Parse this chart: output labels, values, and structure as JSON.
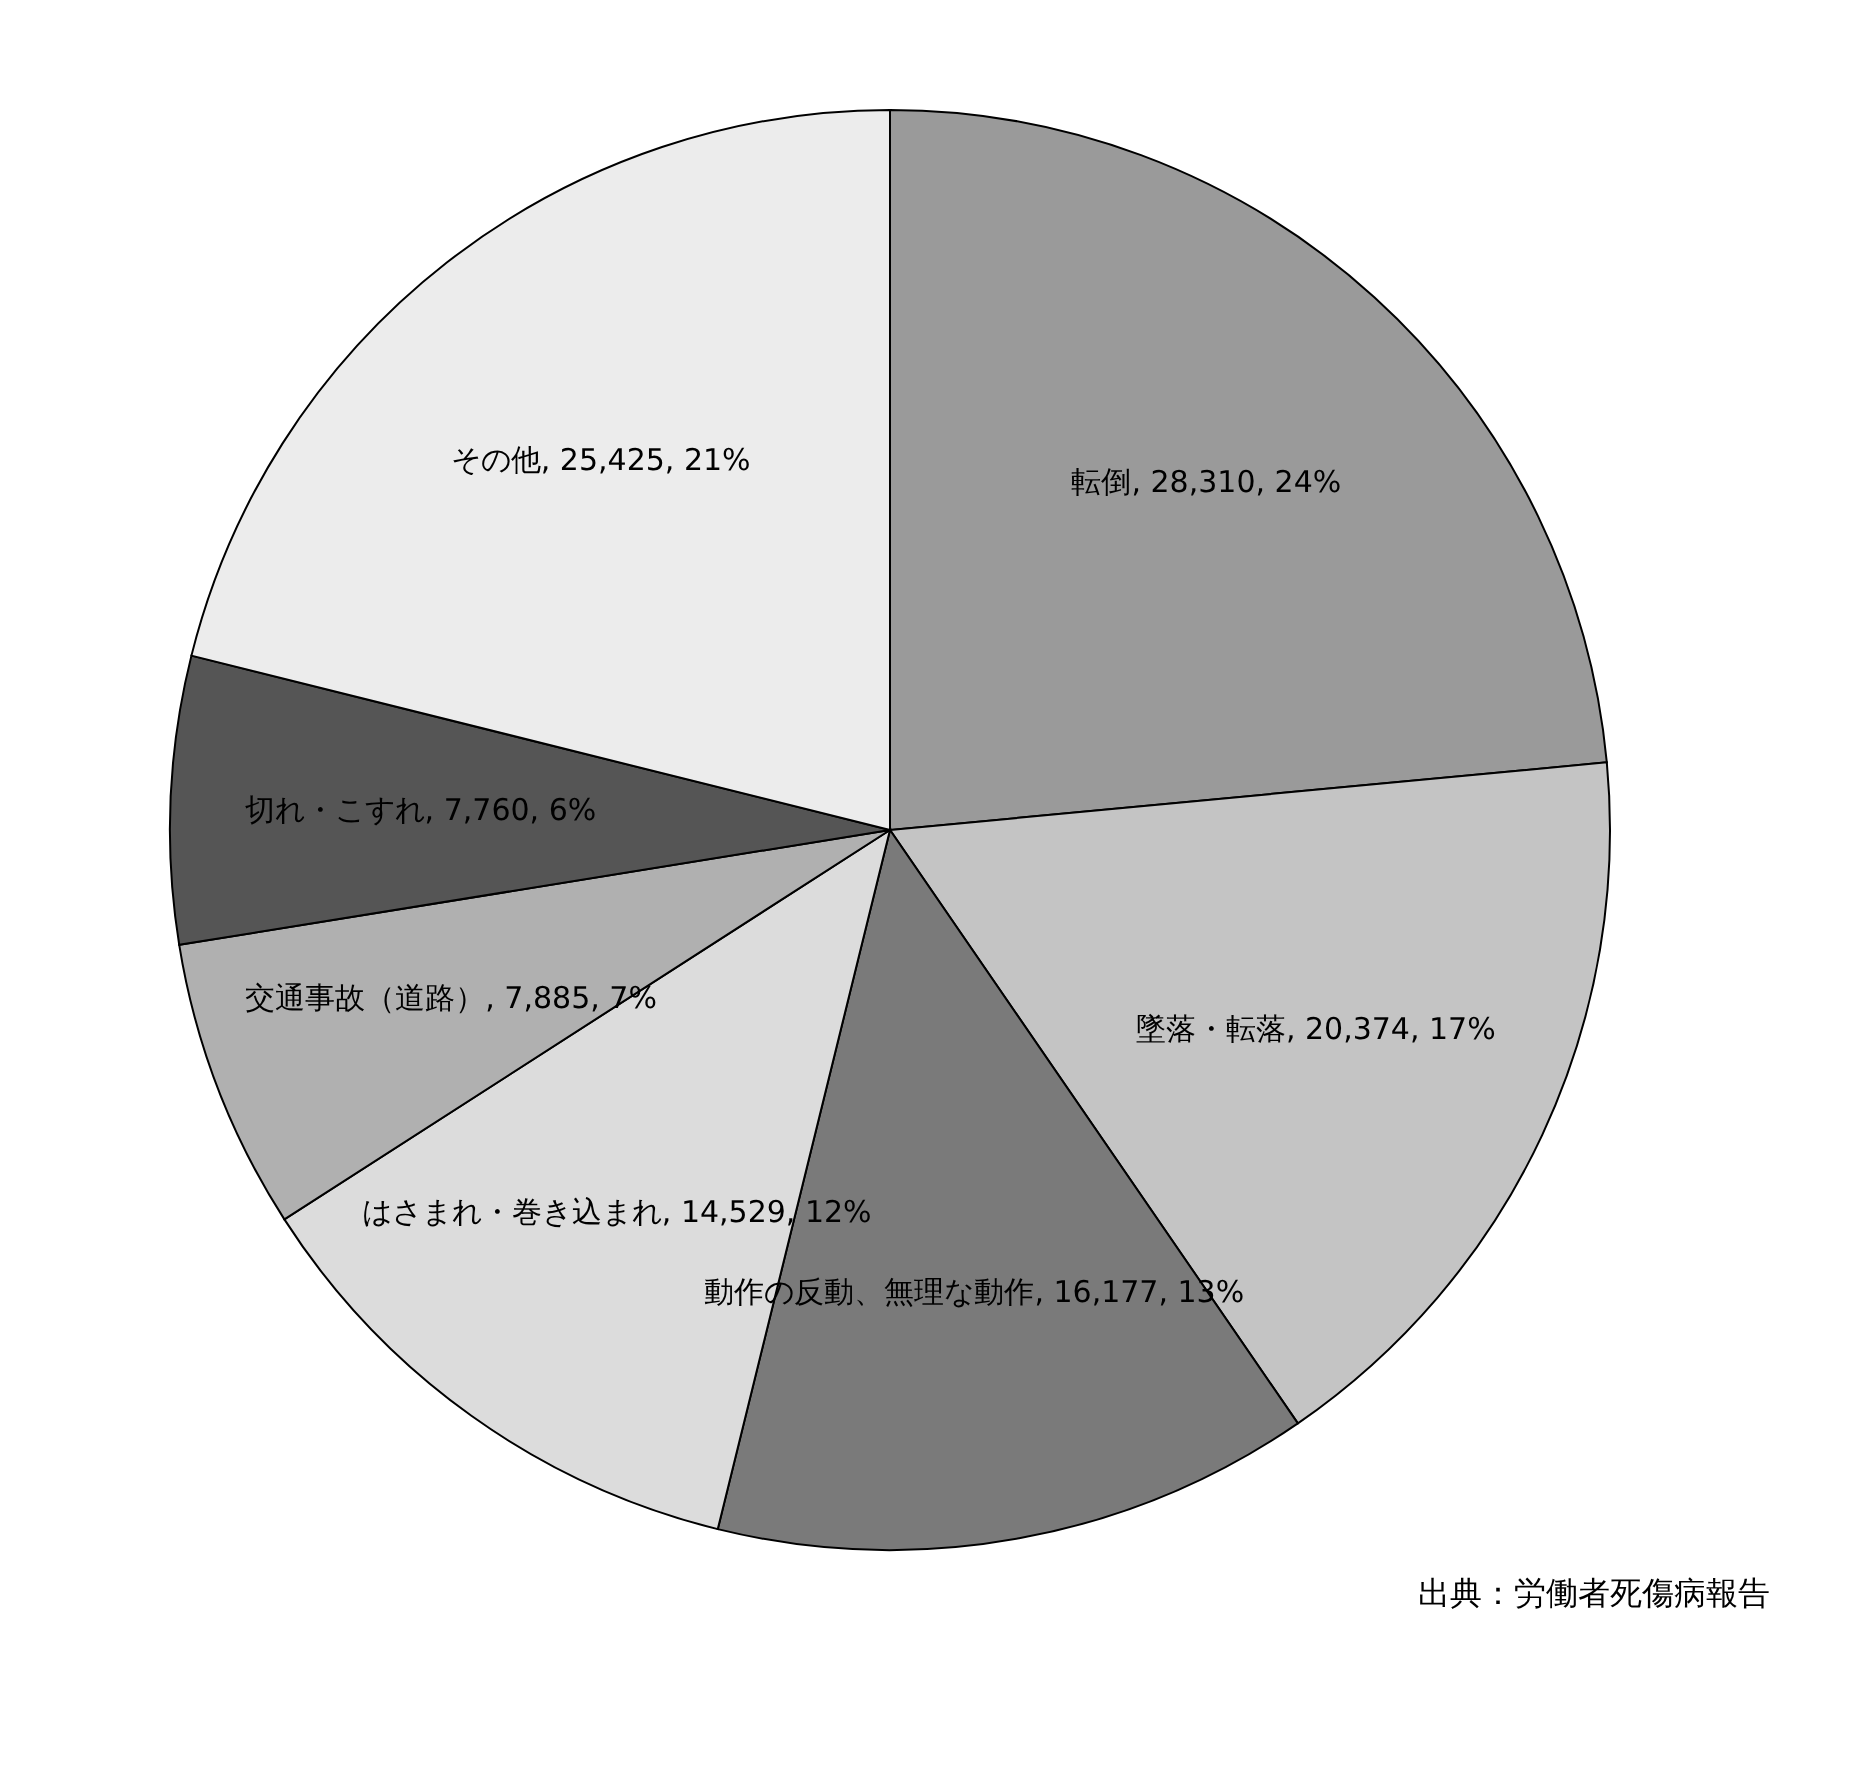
{
  "chart_data": {
    "type": "pie",
    "categories": [
      "転倒",
      "墜落・転落",
      "動作の反動、無理な動作",
      "はさまれ・巻き込まれ",
      "交通事故（道路）",
      "切れ・こすれ",
      "その他"
    ],
    "values": [
      28310,
      20374,
      16177,
      14529,
      7885,
      7760,
      25425
    ],
    "value_labels": [
      "28,310, 24%",
      "20,374, 17%",
      "16,177, 13%",
      "14,529, 12%",
      "7,885, 7%",
      "7,760, 6%",
      "25,425, 21%"
    ],
    "colors": [
      "#9a9a9a",
      "#c4c4c4",
      "#7a7a7a",
      "#dcdcdc",
      "#b0b0b0",
      "#555555",
      "#ececec"
    ],
    "annotations": [
      "出典：労働者死傷病報告"
    ],
    "legend": false
  }
}
